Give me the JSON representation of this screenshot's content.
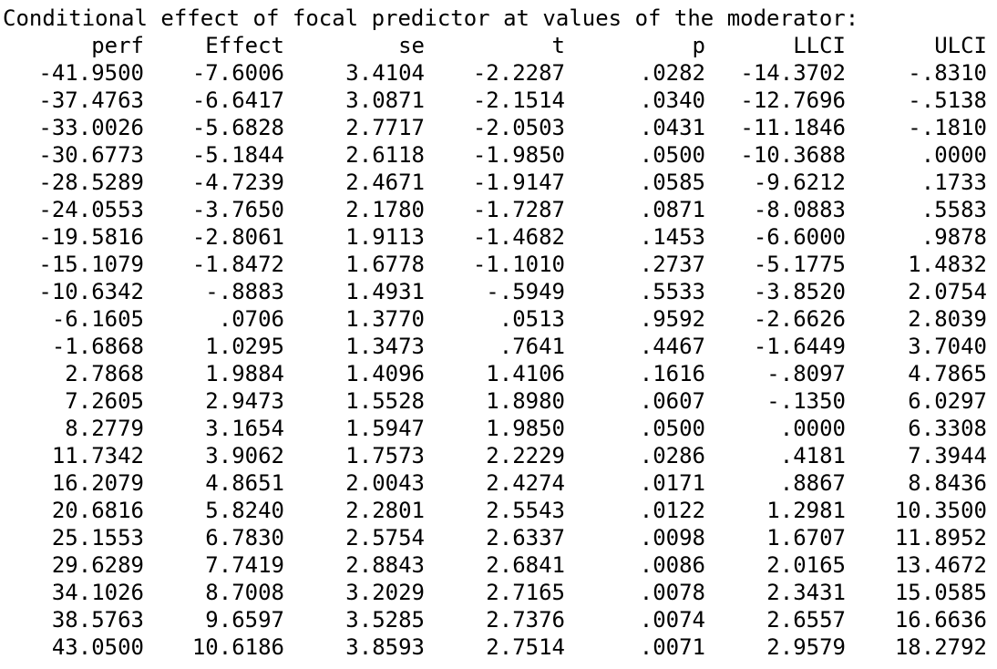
{
  "title": "Conditional effect of focal predictor at values of the moderator:",
  "columns": [
    "perf",
    "Effect",
    "se",
    "t",
    "p",
    "LLCI",
    "ULCI"
  ],
  "rows": [
    [
      "-41.9500",
      "-7.6006",
      "3.4104",
      "-2.2287",
      ".0282",
      "-14.3702",
      "-.8310"
    ],
    [
      "-37.4763",
      "-6.6417",
      "3.0871",
      "-2.1514",
      ".0340",
      "-12.7696",
      "-.5138"
    ],
    [
      "-33.0026",
      "-5.6828",
      "2.7717",
      "-2.0503",
      ".0431",
      "-11.1846",
      "-.1810"
    ],
    [
      "-30.6773",
      "-5.1844",
      "2.6118",
      "-1.9850",
      ".0500",
      "-10.3688",
      ".0000"
    ],
    [
      "-28.5289",
      "-4.7239",
      "2.4671",
      "-1.9147",
      ".0585",
      "-9.6212",
      ".1733"
    ],
    [
      "-24.0553",
      "-3.7650",
      "2.1780",
      "-1.7287",
      ".0871",
      "-8.0883",
      ".5583"
    ],
    [
      "-19.5816",
      "-2.8061",
      "1.9113",
      "-1.4682",
      ".1453",
      "-6.6000",
      ".9878"
    ],
    [
      "-15.1079",
      "-1.8472",
      "1.6778",
      "-1.1010",
      ".2737",
      "-5.1775",
      "1.4832"
    ],
    [
      "-10.6342",
      "-.8883",
      "1.4931",
      "-.5949",
      ".5533",
      "-3.8520",
      "2.0754"
    ],
    [
      "-6.1605",
      ".0706",
      "1.3770",
      ".0513",
      ".9592",
      "-2.6626",
      "2.8039"
    ],
    [
      "-1.6868",
      "1.0295",
      "1.3473",
      ".7641",
      ".4467",
      "-1.6449",
      "3.7040"
    ],
    [
      "2.7868",
      "1.9884",
      "1.4096",
      "1.4106",
      ".1616",
      "-.8097",
      "4.7865"
    ],
    [
      "7.2605",
      "2.9473",
      "1.5528",
      "1.8980",
      ".0607",
      "-.1350",
      "6.0297"
    ],
    [
      "8.2779",
      "3.1654",
      "1.5947",
      "1.9850",
      ".0500",
      ".0000",
      "6.3308"
    ],
    [
      "11.7342",
      "3.9062",
      "1.7573",
      "2.2229",
      ".0286",
      ".4181",
      "7.3944"
    ],
    [
      "16.2079",
      "4.8651",
      "2.0043",
      "2.4274",
      ".0171",
      ".8867",
      "8.8436"
    ],
    [
      "20.6816",
      "5.8240",
      "2.2801",
      "2.5543",
      ".0122",
      "1.2981",
      "10.3500"
    ],
    [
      "25.1553",
      "6.7830",
      "2.5754",
      "2.6337",
      ".0098",
      "1.6707",
      "11.8952"
    ],
    [
      "29.6289",
      "7.7419",
      "2.8843",
      "2.6841",
      ".0086",
      "2.0165",
      "13.4672"
    ],
    [
      "34.1026",
      "8.7008",
      "3.2029",
      "2.7165",
      ".0078",
      "2.3431",
      "15.0585"
    ],
    [
      "38.5763",
      "9.6597",
      "3.5285",
      "2.7376",
      ".0074",
      "2.6557",
      "16.6636"
    ],
    [
      "43.0500",
      "10.6186",
      "3.8593",
      "2.7514",
      ".0071",
      "2.9579",
      "18.2792"
    ]
  ]
}
